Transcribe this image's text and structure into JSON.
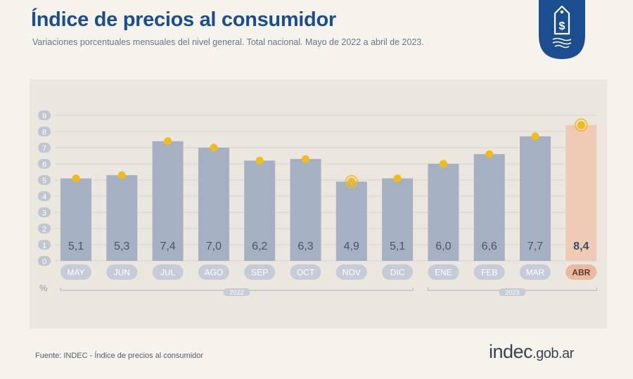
{
  "header": {
    "title": "Índice de precios al consumidor",
    "subtitle": "Variaciones porcentuales mensuales del nivel general. Total nacional. Mayo de 2022 a abril de 2023."
  },
  "footer": {
    "source": "Fuente: INDEC - Índice de precios al consumidor",
    "logo_main": "indec",
    "logo_domain": ".gob.ar"
  },
  "colors": {
    "bar": "#a5b0c3",
    "bar_highlight": "#efcbb6",
    "dot": "#f2bb1a",
    "grid": "#cfd3d9",
    "title": "#1b4e8f",
    "value_label": "#4c5566",
    "value_label_highlight": "#3c4a6e",
    "month_pill": "#c5ccd8",
    "month_pill_highlight": "#e9b9a0"
  },
  "chart_data": {
    "type": "bar",
    "categories": [
      "MAY",
      "JUN",
      "JUL",
      "AGO",
      "SEP",
      "OCT",
      "NOV",
      "DIC",
      "ENE",
      "FEB",
      "MAR",
      "ABR"
    ],
    "values": [
      5.1,
      5.3,
      7.4,
      7.0,
      6.2,
      6.3,
      4.9,
      5.1,
      6.0,
      6.6,
      7.7,
      8.4
    ],
    "value_labels": [
      "5,1",
      "5,3",
      "7,4",
      "7,0",
      "6,2",
      "6,3",
      "4,9",
      "5,1",
      "6,0",
      "6,6",
      "7,7",
      "8,4"
    ],
    "highlight_index": 11,
    "ylim": [
      0,
      9
    ],
    "yticks": [
      "0",
      "1",
      "2",
      "3",
      "4",
      "5",
      "6",
      "7",
      "8",
      "9"
    ],
    "unit_label": "%",
    "year_groups": [
      {
        "label": "2022",
        "start": 0,
        "end": 7
      },
      {
        "label": "2023",
        "start": 8,
        "end": 11
      }
    ],
    "grid": true,
    "legend": "none"
  }
}
